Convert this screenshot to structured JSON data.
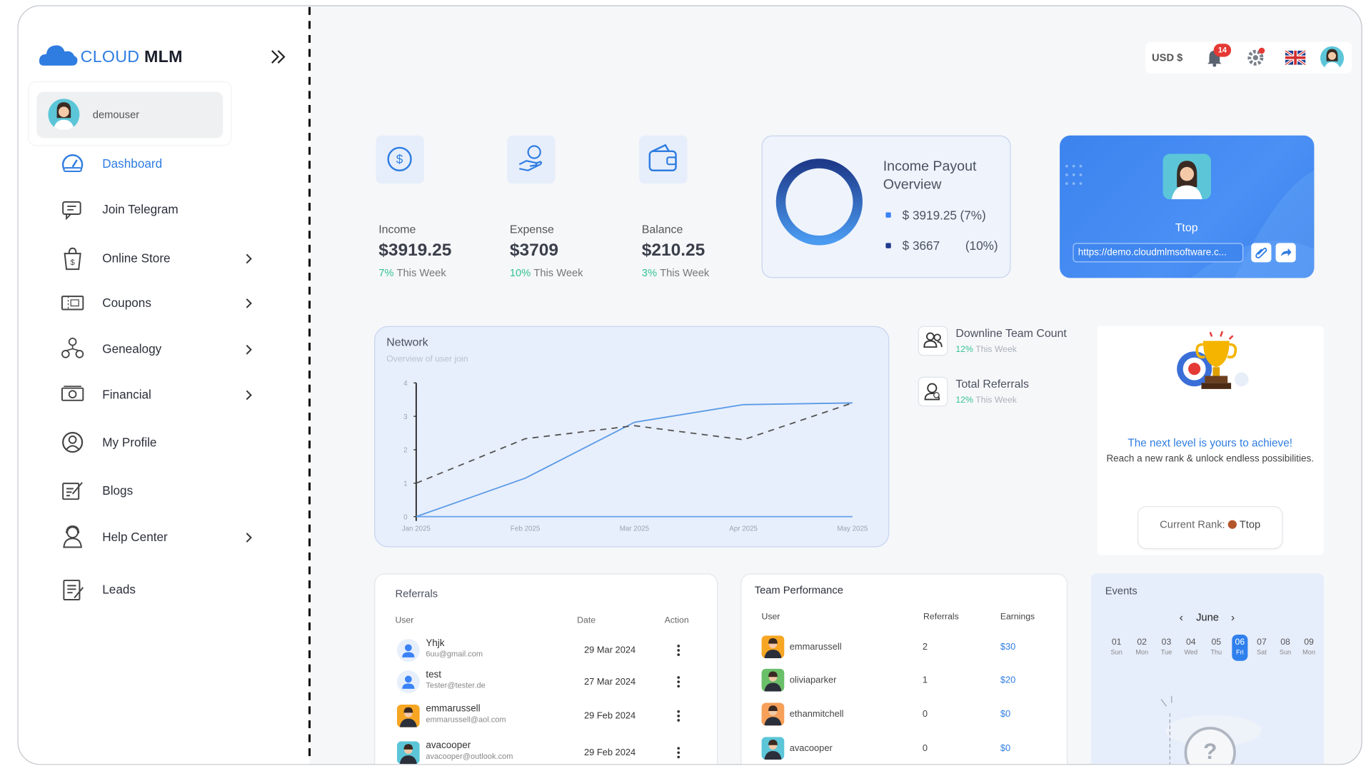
{
  "brand": {
    "name_part1": "CLOUD",
    "name_part2": "MLM"
  },
  "sidebar": {
    "user": "demouser",
    "nav": [
      {
        "label": "Dashboard",
        "active": true
      },
      {
        "label": "Join Telegram"
      },
      {
        "label": "Online Store",
        "submenu": true
      },
      {
        "label": "Coupons",
        "submenu": true
      },
      {
        "label": "Genealogy",
        "submenu": true
      },
      {
        "label": "Financial",
        "submenu": true
      },
      {
        "label": "My Profile"
      },
      {
        "label": "Blogs"
      },
      {
        "label": "Help Center",
        "submenu": true
      },
      {
        "label": "Leads"
      }
    ]
  },
  "header": {
    "currency": "USD $",
    "notifications": 14
  },
  "stats": [
    {
      "label": "Income",
      "value": "$3919.25",
      "change": "7%",
      "period": "This Week"
    },
    {
      "label": "Expense",
      "value": "$3709",
      "change": "10%",
      "period": "This Week"
    },
    {
      "label": "Balance",
      "value": "$210.25",
      "change": "3%",
      "period": "This Week"
    }
  ],
  "payout": {
    "title": "Income Payout Overview",
    "items": [
      {
        "amount": "$ 3919.25",
        "percent": "(7%)",
        "color": "#3b82f6"
      },
      {
        "amount": "$ 3667",
        "percent": "(10%)",
        "color": "#1e3a8a"
      }
    ]
  },
  "profile_card": {
    "name": "Ttop",
    "link": "https://demo.cloudmlmsoftware.c..."
  },
  "chart_data": {
    "type": "line",
    "title": "Network",
    "subtitle": "Overview of user join",
    "categories": [
      "Jan 2025",
      "Feb 2025",
      "Mar 2025",
      "Apr 2025",
      "May 2025"
    ],
    "series": [
      {
        "color": "#5b9be6",
        "dashed": false,
        "values": [
          0,
          1.15,
          2.82,
          3.35,
          3.4
        ]
      },
      {
        "color": "#555555",
        "dashed": true,
        "values": [
          1,
          2.33,
          2.72,
          2.3,
          3.4
        ]
      }
    ],
    "ylim": [
      0,
      4
    ],
    "yticks": [
      0,
      1,
      2,
      3,
      4
    ]
  },
  "team_stats": [
    {
      "label": "Downline Team Count",
      "change": "12%",
      "period": "This Week"
    },
    {
      "label": "Total Referrals",
      "change": "12%",
      "period": "This Week"
    }
  ],
  "achievement": {
    "title": "The next level is yours to achieve!",
    "text": "Reach a new rank & unlock endless possibilities.",
    "rank_label": "Current Rank:",
    "rank": "Ttop"
  },
  "referrals": {
    "title": "Referrals",
    "columns": [
      "User",
      "Date",
      "Action"
    ],
    "rows": [
      {
        "name": "Yhjk",
        "email": "6uu@gmail.com",
        "date": "29 Mar 2024"
      },
      {
        "name": "test",
        "email": "Tester@tester.de",
        "date": "27 Mar 2024"
      },
      {
        "name": "emmarussell",
        "email": "emmarussell@aol.com",
        "date": "29 Feb 2024"
      },
      {
        "name": "avacooper",
        "email": "avacooper@outlook.com",
        "date": "29 Feb 2024"
      }
    ]
  },
  "team_performance": {
    "title": "Team Performance",
    "columns": [
      "User",
      "Referrals",
      "Earnings"
    ],
    "rows": [
      {
        "user": "emmarussell",
        "referrals": 2,
        "earnings": "$30"
      },
      {
        "user": "oliviaparker",
        "referrals": 1,
        "earnings": "$20"
      },
      {
        "user": "ethanmitchell",
        "referrals": 0,
        "earnings": "$0"
      },
      {
        "user": "avacooper",
        "referrals": 0,
        "earnings": "$0"
      }
    ]
  },
  "events": {
    "title": "Events",
    "month": "June",
    "selected": 5,
    "days": [
      {
        "date": "01",
        "day": "Sun"
      },
      {
        "date": "02",
        "day": "Mon"
      },
      {
        "date": "03",
        "day": "Tue"
      },
      {
        "date": "04",
        "day": "Wed"
      },
      {
        "date": "05",
        "day": "Thu"
      },
      {
        "date": "06",
        "day": "Fri"
      },
      {
        "date": "07",
        "day": "Sat"
      },
      {
        "date": "08",
        "day": "Sun"
      },
      {
        "date": "09",
        "day": "Mon"
      }
    ]
  }
}
